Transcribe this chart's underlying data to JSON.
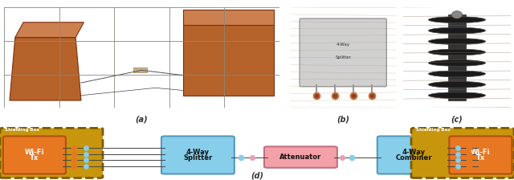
{
  "fig_width": 6.4,
  "fig_height": 2.24,
  "dpi": 100,
  "background_color": "#ffffff",
  "label_a": "(a)",
  "label_b": "(b)",
  "label_c": "(c)",
  "label_d": "(d)",
  "shielding_box_color": "#c8960c",
  "shielding_box_edge": "#7a5c00",
  "wifi_box_color": "#E87722",
  "wifi_box_edge": "#b05010",
  "splitter_color": "#87CEEB",
  "splitter_edge": "#5599bb",
  "attenuator_color": "#F4A0A8",
  "attenuator_edge": "#c07080",
  "combiner_color": "#87CEEB",
  "combiner_edge": "#5599bb",
  "line_color": "#444444",
  "orange_dot_color": "#E87722",
  "blue_dot_color": "#87CEEB",
  "photo_a_bg": "#c8c0b0",
  "photo_a_tile": "#d4cfc5",
  "photo_a_tile_line": "#888880",
  "photo_a_brick": "#b5632a",
  "photo_b_bg": "#b8a888",
  "photo_b_device": "#d0d0d0",
  "photo_b_port": "#c87040",
  "photo_c_bg": "#a89880",
  "photo_c_device": "#1a1a1a"
}
